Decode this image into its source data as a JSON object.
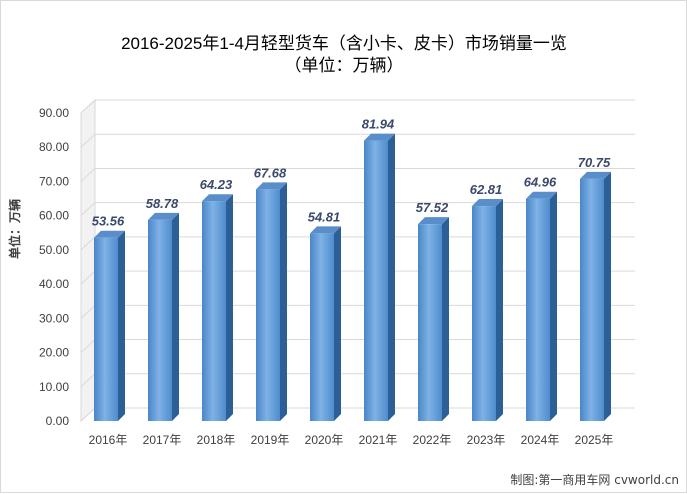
{
  "chart_data": {
    "type": "bar",
    "title": "2016-2025年1-4月轻型货车（含小卡、皮卡）市场销量一览",
    "subtitle": "（单位：万辆）",
    "ylabel": "单位：万辆",
    "xlabel": "",
    "categories": [
      "2016年",
      "2017年",
      "2018年",
      "2019年",
      "2020年",
      "2021年",
      "2022年",
      "2023年",
      "2024年",
      "2025年"
    ],
    "values": [
      53.56,
      58.78,
      64.23,
      67.68,
      54.81,
      81.94,
      57.52,
      62.81,
      64.96,
      70.75
    ],
    "value_labels": [
      "53.56",
      "58.78",
      "64.23",
      "67.68",
      "54.81",
      "81.94",
      "57.52",
      "62.81",
      "64.96",
      "70.75"
    ],
    "ylim": [
      0,
      90
    ],
    "yticks": [
      "0.00",
      "10.00",
      "20.00",
      "30.00",
      "40.00",
      "50.00",
      "60.00",
      "70.00",
      "80.00",
      "90.00"
    ],
    "grid": true,
    "legend": "none",
    "colors": {
      "bar_light": "#7fb2e5",
      "bar_dark": "#3f7fc4",
      "bar_side": "#2c5f96",
      "bar_top": "#5a8ecb",
      "grid": "#d9d9d9"
    }
  },
  "credit": "制图:第一商用车网 cvworld.cn"
}
